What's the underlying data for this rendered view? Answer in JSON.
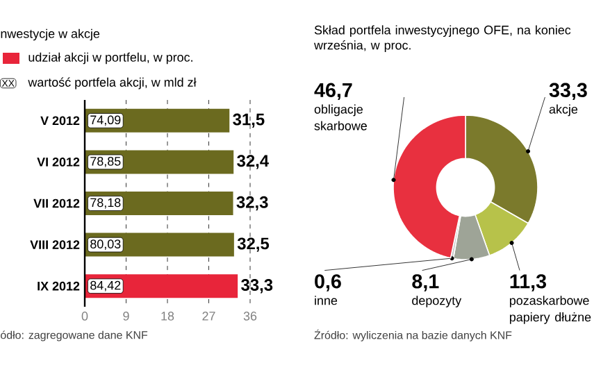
{
  "chart_data": [
    {
      "type": "bar",
      "orientation": "horizontal",
      "legend_title": "nwestycje w akcje",
      "categories": [
        "V 2012",
        "VI 2012",
        "VII 2012",
        "VIII 2012",
        "IX 2012"
      ],
      "series": [
        {
          "name": "udział akcji w portfelu, w proc.",
          "color": "#e8253a",
          "colors": [
            "#6b6a1f",
            "#6b6a1f",
            "#6b6a1f",
            "#6b6a1f",
            "#e8253a"
          ],
          "values": [
            31.5,
            32.4,
            32.3,
            32.5,
            33.3
          ],
          "value_labels": [
            "31,5",
            "32,4",
            "32,3",
            "32,5",
            "33,3"
          ]
        }
      ],
      "xlim": [
        0,
        36
      ],
      "xticks": [
        0,
        9,
        18,
        27,
        36
      ],
      "grid": "x",
      "legend": "top left",
      "annotations": [
        "XX",
        "wartość portfela akcji, w mld zł",
        "74,09",
        "78,85",
        "78,18",
        "80,03",
        "84,42",
        "ódło: zagregowane dane KNF"
      ]
    },
    {
      "type": "donut",
      "title": "Skład portfela inwestycyjnego OFE, na koniec września, w proc.",
      "categories": [
        "akcje",
        "pozaskarbowe papiery dłużne",
        "depozyty",
        "inne",
        "obligacje skarbowe"
      ],
      "values": [
        33.3,
        11.3,
        8.1,
        0.6,
        46.7
      ],
      "colors": [
        "#7b7a2c",
        "#b7c24a",
        "#9ea497",
        "#c8c8c8",
        "#e8303f"
      ],
      "value_labels": [
        "33,3",
        "11,3",
        "8,1",
        "0,6",
        "46,7"
      ],
      "annotations": [
        "Źródło: wyliczenia na bazie danych KNF"
      ]
    }
  ]
}
